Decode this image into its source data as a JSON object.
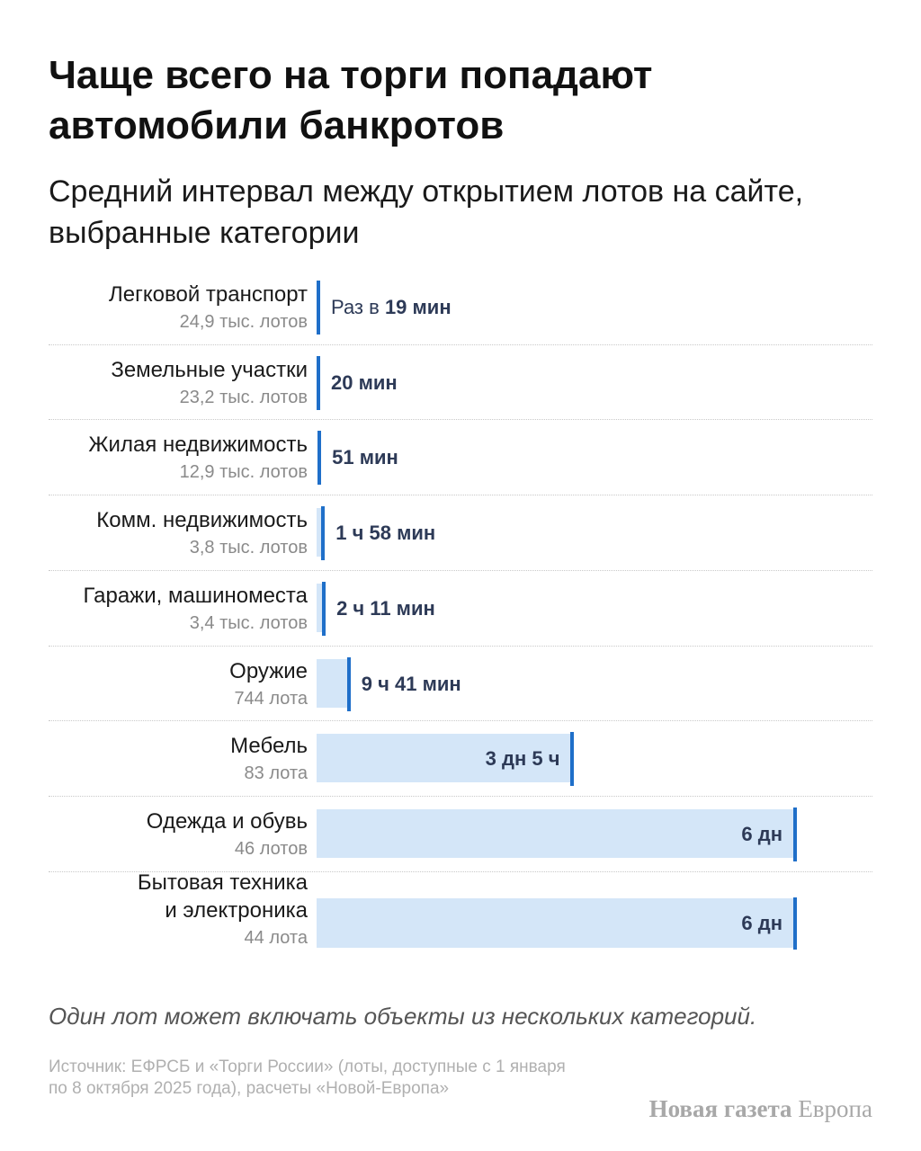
{
  "title": "Чаще всего на торги попадают автомобили банкротов",
  "subtitle": "Средний интервал между открытием лотов на сайте, выбранные категории",
  "footnote": "Один лот может включать объекты из нескольких категорий.",
  "source": "Источник: ЕФРСБ и «Торги России» (лоты, доступные с 1 января по 8 октября 2025 года), расчеты «Новой-Европа»",
  "brand": {
    "part1": "Новая газета",
    "part2": "Европа"
  },
  "colors": {
    "bar_fill": "#d4e6f8",
    "bar_tick": "#1f6fc9",
    "value_text": "#2d3a57"
  },
  "chart_data": {
    "type": "bar",
    "orientation": "horizontal",
    "unit": "minutes",
    "title": "Чаще всего на торги попадают автомобили банкротов",
    "subtitle": "Средний интервал между открытием лотов на сайте, выбранные категории",
    "categories": [
      "Легковой транспорт",
      "Земельные участки",
      "Жилая недвижимость",
      "Комм. недвижимость",
      "Гаражи, машиноместа",
      "Оружие",
      "Мебель",
      "Одежда и обувь",
      "Бытовая техника и электроника"
    ],
    "items": [
      {
        "label": "Легковой транспорт",
        "count": "24,9 тыс. лотов",
        "value_prefix": "Раз в ",
        "value_label": "19 мин",
        "value": 19
      },
      {
        "label": "Земельные участки",
        "count": "23,2 тыс. лотов",
        "value_prefix": "",
        "value_label": "20 мин",
        "value": 20
      },
      {
        "label": "Жилая недвижимость",
        "count": "12,9 тыс. лотов",
        "value_prefix": "",
        "value_label": "51 мин",
        "value": 51
      },
      {
        "label": "Комм. недвижимость",
        "count": "3,8 тыс. лотов",
        "value_prefix": "",
        "value_label": "1 ч 58 мин",
        "value": 118
      },
      {
        "label": "Гаражи, машиноместа",
        "count": "3,4 тыс. лотов",
        "value_prefix": "",
        "value_label": "2 ч 11 мин",
        "value": 131
      },
      {
        "label": "Оружие",
        "count": "744 лота",
        "value_prefix": "",
        "value_label": "9 ч 41 мин",
        "value": 581
      },
      {
        "label": "Мебель",
        "count": "83 лота",
        "value_prefix": "",
        "value_label": "3 дн 5 ч",
        "value": 4620
      },
      {
        "label": "Одежда и обувь",
        "count": "46 лотов",
        "value_prefix": "",
        "value_label": "6 дн",
        "value": 8640
      },
      {
        "label": "Бытовая техника и электроника",
        "label_lines": [
          "Бытовая техника",
          "и электроника"
        ],
        "count": "44 лота",
        "value_prefix": "",
        "value_label": "6 дн",
        "value": 8640
      }
    ],
    "xlim": [
      0,
      8640
    ],
    "grid": false,
    "legend": "none"
  }
}
